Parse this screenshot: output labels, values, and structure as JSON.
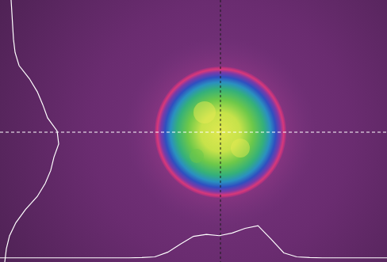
{
  "chart_data": [
    {
      "type": "line",
      "tick_labels": false,
      "color": "#ffffff",
      "ylim": [
        0,
        110
      ],
      "values": [
        3,
        3,
        3,
        3,
        3,
        3,
        3,
        3,
        3,
        3,
        3,
        4,
        6,
        20,
        45,
        68,
        74,
        70,
        78,
        92,
        100,
        60,
        18,
        6,
        4,
        3,
        3,
        3,
        3,
        3,
        3
      ]
    },
    {
      "type": "line",
      "orientation": "horizontal",
      "tick_labels": false,
      "color": "#ffffff",
      "xlim": [
        0,
        100
      ],
      "values": [
        12,
        13,
        14,
        15,
        17,
        22,
        35,
        45,
        52,
        58,
        70,
        72,
        66,
        62,
        55,
        45,
        30,
        18,
        10,
        6,
        4
      ]
    }
  ]
}
